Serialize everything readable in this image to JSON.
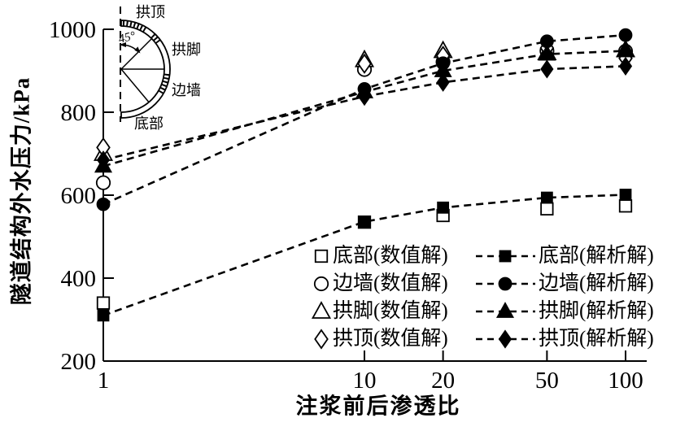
{
  "figure": {
    "background": "#ffffff",
    "ink": "#000000"
  },
  "chart_data": {
    "type": "line",
    "title": "",
    "xlabel": "注浆前后渗透比",
    "ylabel": "隧道结构外水压力/kPa",
    "x_scale": "log",
    "grid": "off",
    "legend_position": "inside-lower-right",
    "xlim": [
      1,
      120
    ],
    "ylim": [
      200,
      1000
    ],
    "x_ticks": [
      "1",
      "10",
      "20",
      "50",
      "100"
    ],
    "y_ticks": [
      "200",
      "400",
      "600",
      "800",
      "1000"
    ],
    "x": [
      1,
      10,
      20,
      50,
      100
    ],
    "series": [
      {
        "key": "bottom-numeric",
        "name": "底部(数值解)",
        "marker": "square",
        "fill": "open",
        "line": false,
        "values": [
          340,
          535,
          551,
          567,
          574
        ]
      },
      {
        "key": "bottom-analytic",
        "name": "底部(解析解)",
        "marker": "square",
        "fill": "solid",
        "line": true,
        "values": [
          310,
          536,
          570,
          594,
          601
        ]
      },
      {
        "key": "wall-numeric",
        "name": "边墙(数值解)",
        "marker": "circle",
        "fill": "open",
        "line": false,
        "values": [
          630,
          903,
          921,
          948,
          947
        ]
      },
      {
        "key": "wall-analytic",
        "name": "边墙(解析解)",
        "marker": "circle",
        "fill": "solid",
        "line": true,
        "values": [
          578,
          856,
          918,
          971,
          986
        ]
      },
      {
        "key": "foot-numeric",
        "name": "拱脚(数值解)",
        "marker": "triangle",
        "fill": "open",
        "line": false,
        "values": [
          700,
          926,
          948,
          943,
          950
        ]
      },
      {
        "key": "foot-analytic",
        "name": "拱脚(解析解)",
        "marker": "triangle",
        "fill": "solid",
        "line": true,
        "values": [
          670,
          849,
          900,
          940,
          948
        ]
      },
      {
        "key": "crown-numeric",
        "name": "拱顶(数值解)",
        "marker": "diamond",
        "fill": "open",
        "line": false,
        "values": [
          715,
          917,
          936,
          955,
          930
        ]
      },
      {
        "key": "crown-analytic",
        "name": "拱顶(解析解)",
        "marker": "diamond",
        "fill": "solid",
        "line": true,
        "values": [
          685,
          838,
          872,
          904,
          911
        ]
      }
    ],
    "inset": {
      "labels": {
        "crown": "拱顶",
        "foot": "拱脚",
        "wall": "边墙",
        "bottom": "底部"
      },
      "angle_label": "45°"
    }
  }
}
